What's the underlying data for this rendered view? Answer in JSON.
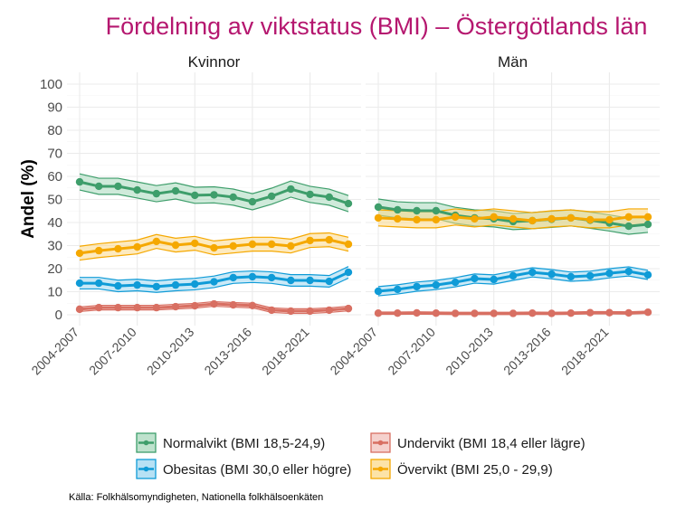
{
  "chart_data": {
    "type": "line",
    "title": "Fördelning av viktstatus (BMI) – Östergötlands län",
    "ylabel": "Andel (%)",
    "xlabel": "",
    "ylim": [
      0,
      100
    ],
    "yticks": [
      0,
      10,
      20,
      30,
      40,
      50,
      60,
      70,
      80,
      90,
      100
    ],
    "n_periods": 15,
    "xtick_labels": [
      {
        "index": 0,
        "label": "2004-2007"
      },
      {
        "index": 3,
        "label": "2007-2010"
      },
      {
        "index": 6,
        "label": "2010-2013"
      },
      {
        "index": 9,
        "label": "2013-2016"
      },
      {
        "index": 12,
        "label": "2018-2021"
      }
    ],
    "grid": true,
    "legend_position": "bottom",
    "source": "Källa: Folkhälsomyndigheten, Nationella folkhälsoenkäten",
    "series_meta": [
      {
        "key": "normal",
        "name": "Normalvikt (BMI 18,5-24,9)",
        "color": "#3E9E6B",
        "fill": "#A8D8BC"
      },
      {
        "key": "under",
        "name": "Undervikt (BMI 18,4 eller lägre)",
        "color": "#D86F62",
        "fill": "#F2C2BC"
      },
      {
        "key": "obese",
        "name": "Obesitas (BMI 30,0 eller högre)",
        "color": "#0F9BD7",
        "fill": "#9FD7F0"
      },
      {
        "key": "over",
        "name": "Övervikt (BMI 25,0 - 29,9)",
        "color": "#F5A800",
        "fill": "#FBD98A"
      }
    ],
    "panels": [
      {
        "label": "Kvinnor",
        "series": [
          {
            "key": "normal",
            "values": [
              57.6,
              55.7,
              55.7,
              54.1,
              52.5,
              53.7,
              51.8,
              52.0,
              51.0,
              49.0,
              51.4,
              54.5,
              52.2,
              51.0,
              48.2
            ],
            "ci": 3.5
          },
          {
            "key": "over",
            "values": [
              26.7,
              27.8,
              28.6,
              29.4,
              31.8,
              30.2,
              31.0,
              29.0,
              29.8,
              30.6,
              30.6,
              29.8,
              32.2,
              32.5,
              30.6
            ],
            "ci": 3.0
          },
          {
            "key": "obese",
            "values": [
              13.7,
              13.7,
              12.5,
              12.9,
              12.2,
              12.9,
              13.3,
              14.3,
              16.1,
              16.5,
              16.1,
              14.9,
              14.9,
              14.5,
              18.4
            ],
            "ci": 2.5
          },
          {
            "key": "under",
            "values": [
              2.4,
              3.1,
              3.1,
              3.1,
              3.1,
              3.5,
              3.9,
              4.7,
              4.3,
              4.0,
              2.0,
              1.6,
              1.6,
              2.0,
              2.7
            ],
            "ci": 1.0
          }
        ]
      },
      {
        "label": "Män",
        "series": [
          {
            "key": "normal",
            "values": [
              46.7,
              45.5,
              45.1,
              45.1,
              43.1,
              42.0,
              41.6,
              40.4,
              40.8,
              41.4,
              42.0,
              41.0,
              39.8,
              38.4,
              39.2
            ],
            "ci": 3.5
          },
          {
            "key": "over",
            "values": [
              42.0,
              41.6,
              41.2,
              41.2,
              42.4,
              41.6,
              42.4,
              41.6,
              40.8,
              41.6,
              42.0,
              41.2,
              41.2,
              42.4,
              42.4
            ],
            "ci": 3.5
          },
          {
            "key": "obese",
            "values": [
              10.2,
              11.0,
              12.2,
              12.9,
              14.1,
              15.7,
              15.3,
              16.9,
              18.4,
              17.6,
              16.5,
              16.9,
              18.0,
              18.8,
              17.3
            ],
            "ci": 2.0
          },
          {
            "key": "under",
            "values": [
              0.7,
              0.7,
              0.8,
              0.7,
              0.6,
              0.6,
              0.6,
              0.6,
              0.7,
              0.6,
              0.7,
              0.9,
              0.9,
              0.8,
              1.1
            ],
            "ci": 0.5
          }
        ]
      }
    ]
  },
  "legend": {
    "items": [
      {
        "key": "normal",
        "label": "Normalvikt (BMI 18,5-24,9)"
      },
      {
        "key": "under",
        "label": "Undervikt (BMI 18,4 eller lägre)"
      },
      {
        "key": "obese",
        "label": "Obesitas (BMI 30,0 eller högre)"
      },
      {
        "key": "over",
        "label": "Övervikt (BMI 25,0 - 29,9)"
      }
    ]
  }
}
